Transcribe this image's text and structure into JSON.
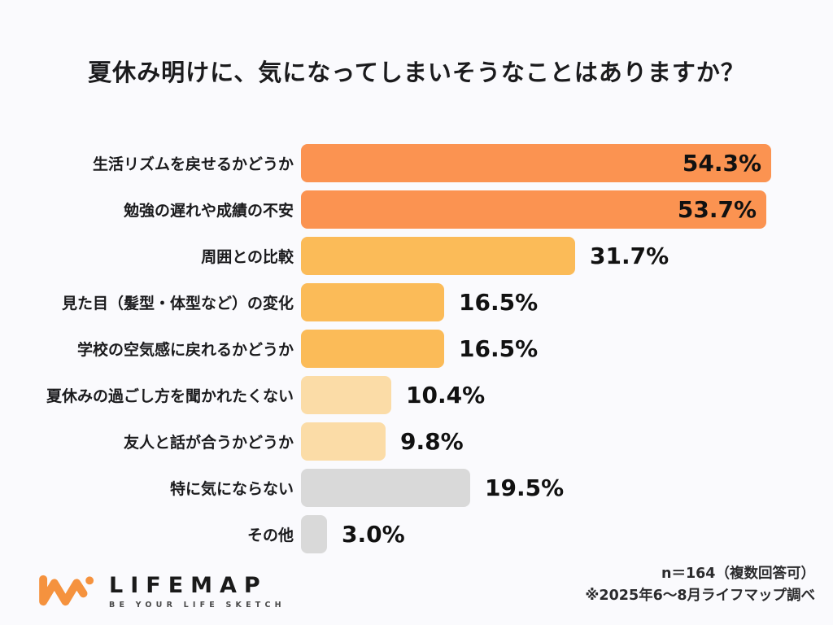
{
  "title": "夏休み明けに、気になってしまいそうなことはありますか？",
  "chart_data": {
    "type": "bar",
    "orientation": "horizontal",
    "title": "夏休み明けに、気になってしまいそうなことはありますか？",
    "categories": [
      "生活リズムを戻せるかどうか",
      "勉強の遅れや成績の不安",
      "周囲との比較",
      "見た目（髪型・体型など）の変化",
      "学校の空気感に戻れるかどうか",
      "夏休みの過ごし方を聞かれたくない",
      "友人と話が合うかどうか",
      "特に気にならない",
      "その他"
    ],
    "values": [
      54.3,
      53.7,
      31.7,
      16.5,
      16.5,
      10.4,
      9.8,
      19.5,
      3.0
    ],
    "value_labels": [
      "54.3%",
      "53.7%",
      "31.7%",
      "16.5%",
      "16.5%",
      "10.4%",
      "9.8%",
      "19.5%",
      "3.0%"
    ],
    "bar_colors": [
      "#FB9351",
      "#FB9351",
      "#FBBB58",
      "#FBBB58",
      "#FBBB58",
      "#FBDCA7",
      "#FBDCA7",
      "#D9D9D9",
      "#D9D9D9"
    ],
    "label_inside": [
      true,
      true,
      false,
      false,
      false,
      false,
      false,
      false,
      false
    ],
    "xlim": [
      0,
      60.2
    ],
    "grid": false,
    "legend": "none"
  },
  "footer": {
    "logo_text": "LIFEMAP",
    "logo_tagline": "BE YOUR LIFE SKETCH",
    "sample_note": "n＝164（複数回答可）",
    "source_note": "※2025年6～8月ライフマップ調べ"
  },
  "colors": {
    "background": "#FAFAFD",
    "bar_strong": "#FB9351",
    "bar_medium": "#FBBB58",
    "bar_light": "#FBDCA7",
    "bar_gray": "#D9D9D9",
    "text": "#1B1B1D",
    "logo_orange": "#F5923E"
  }
}
